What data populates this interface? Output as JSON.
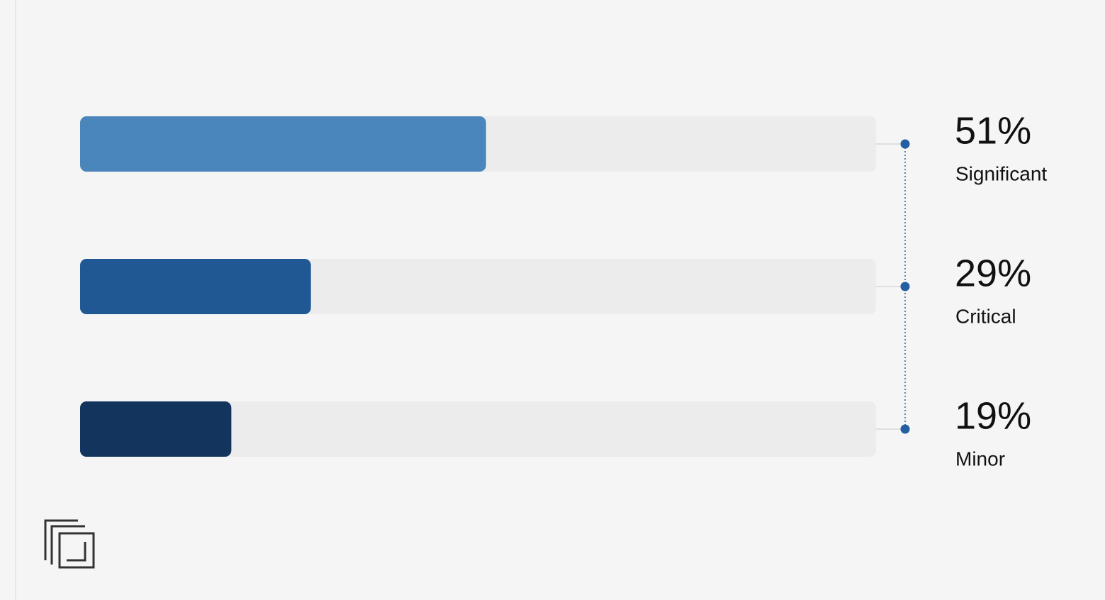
{
  "chart_data": {
    "type": "bar",
    "orientation": "horizontal",
    "categories": [
      "Significant",
      "Critical",
      "Minor"
    ],
    "values": [
      51,
      29,
      19
    ],
    "value_labels": [
      "51%",
      "29%",
      "19%"
    ],
    "colors": [
      "#4a86bb",
      "#1f5893",
      "#12345d"
    ],
    "xlim": [
      0,
      100
    ]
  }
}
